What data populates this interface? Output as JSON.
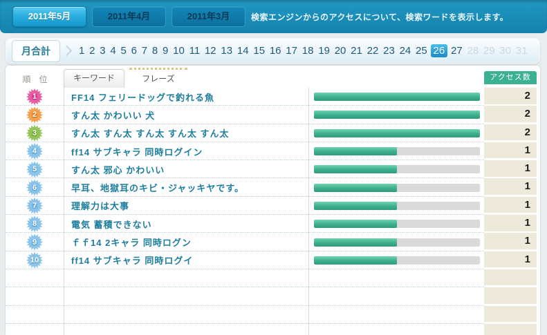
{
  "header": {
    "tabs": [
      {
        "label": "2011年5月",
        "active": true
      },
      {
        "label": "2011年4月",
        "active": false
      },
      {
        "label": "2011年3月",
        "active": false
      }
    ],
    "description": "検索エンジンからのアクセスについて、検索ワードを表示します。"
  },
  "day_bar": {
    "month_total_label": "月合計",
    "days": [
      1,
      2,
      3,
      4,
      5,
      6,
      7,
      8,
      9,
      10,
      11,
      12,
      13,
      14,
      15,
      16,
      17,
      18,
      19,
      20,
      21,
      22,
      23,
      24,
      25,
      26,
      27,
      28,
      29,
      30,
      31
    ],
    "selected_day": 26,
    "disabled_days": [
      28,
      29,
      30,
      31
    ]
  },
  "table": {
    "rank_header": "順　位",
    "keyword_tab_label": "キーワード",
    "phrase_tab_label": "フレーズ",
    "access_header": "アクセス数",
    "max_count": 2,
    "rows": [
      {
        "rank": "1",
        "badge_color": "#e23a90",
        "phrase": "FF14 フェリードッグで釣れる魚",
        "count": "2",
        "bar_pct": 100
      },
      {
        "rank": "2",
        "badge_color": "#f08b26",
        "phrase": "すん太 かわいい 犬",
        "count": "2",
        "bar_pct": 100
      },
      {
        "rank": "3",
        "badge_color": "#7cb833",
        "phrase": "すん太 すん太 すん太 すん太 すん太",
        "count": "2",
        "bar_pct": 100
      },
      {
        "rank": "4",
        "badge_color": "#72b8e6",
        "phrase": "ff14 サブキャラ 同時ログイン",
        "count": "1",
        "bar_pct": 50
      },
      {
        "rank": "5",
        "badge_color": "#72b8e6",
        "phrase": "すん太 邪心 かわいい",
        "count": "1",
        "bar_pct": 50
      },
      {
        "rank": "6",
        "badge_color": "#72b8e6",
        "phrase": "早耳、地獄耳のキビ・ジャッキヤです。",
        "count": "1",
        "bar_pct": 50
      },
      {
        "rank": "7",
        "badge_color": "#72b8e6",
        "phrase": "理解力は大事",
        "count": "1",
        "bar_pct": 50
      },
      {
        "rank": "8",
        "badge_color": "#72b8e6",
        "phrase": "電気 蓄積できない",
        "count": "1",
        "bar_pct": 50
      },
      {
        "rank": "9",
        "badge_color": "#72b8e6",
        "phrase": "ｆｆ14 2キャラ 同時ログン",
        "count": "1",
        "bar_pct": 50
      },
      {
        "rank": "10",
        "badge_color": "#72b8e6",
        "phrase": "ff14 サブキャラ 同時ログイ",
        "count": "1",
        "bar_pct": 50
      }
    ],
    "empty_row_count": 4
  },
  "colors": {
    "header_blue": "#1b8db7",
    "active_tab_blue": "#2cb0e0",
    "selected_day_blue": "#2da3dc",
    "bar_green": "#3dae8c",
    "bar_track_gray": "#dadada",
    "access_header_green": "#3bb093",
    "count_cell_beige": "#edeadb",
    "phrase_text_teal": "#1e7e9e"
  }
}
